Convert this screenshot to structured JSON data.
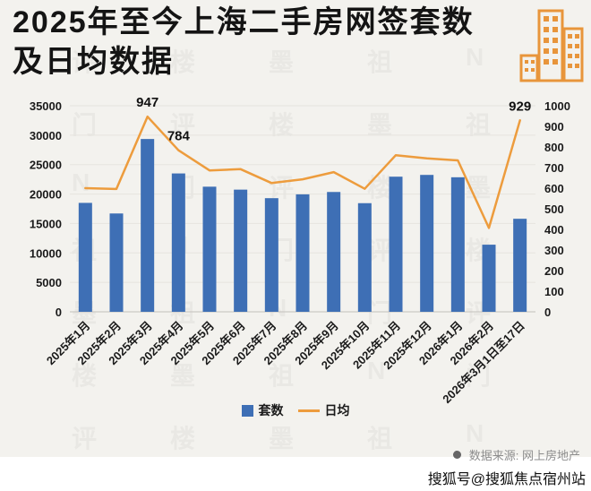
{
  "header": {
    "title_line1": "2025年至今上海二手房网签套数",
    "title_line2": "及日均数据",
    "building_icon_color": "#E8953B"
  },
  "chart_data": {
    "type": "bar+line",
    "title": "2025年至今上海二手房网签套数及日均数据",
    "categories": [
      "2025年1月",
      "2025年2月",
      "2025年3月",
      "2025年4月",
      "2025年5月",
      "2025年6月",
      "2025年7月",
      "2025年8月",
      "2025年9月",
      "2025年10月",
      "2025年11月",
      "2025年12月",
      "2026年1月",
      "2026年2月",
      "2026年3月1日至17日"
    ],
    "series": [
      {
        "name": "套数",
        "type": "bar",
        "axis": "left",
        "color": "#3E6FB5",
        "values": [
          18500,
          16700,
          29350,
          23500,
          21250,
          20750,
          19300,
          19950,
          20350,
          18450,
          22950,
          23250,
          22850,
          11400,
          15800
        ]
      },
      {
        "name": "日均",
        "type": "line",
        "axis": "right",
        "color": "#ED9C3D",
        "values": [
          600,
          596,
          947,
          784,
          686,
          692,
          625,
          643,
          678,
          597,
          760,
          745,
          735,
          407,
          929
        ]
      }
    ],
    "left_axis": {
      "min": 0,
      "max": 35000,
      "step": 5000
    },
    "right_axis": {
      "min": 0,
      "max": 1000,
      "step": 100
    },
    "annotations": [
      {
        "series": "日均",
        "index": 2,
        "label": "947"
      },
      {
        "series": "日均",
        "index": 3,
        "label": "784"
      },
      {
        "series": "日均",
        "index": 14,
        "label": "929"
      }
    ],
    "grid": true,
    "legend_position": "bottom"
  },
  "legend": {
    "items": [
      {
        "label": "套数",
        "marker": "square",
        "color": "#3E6FB5"
      },
      {
        "label": "日均",
        "marker": "line",
        "color": "#ED9C3D"
      }
    ]
  },
  "footer": {
    "source_text": "数据来源: 网上房地产",
    "publisher": "搜狐号@搜狐焦点宿州站"
  },
  "watermark": {
    "chars": [
      "评",
      "楼",
      "墨",
      "祖",
      "N",
      "门"
    ]
  }
}
